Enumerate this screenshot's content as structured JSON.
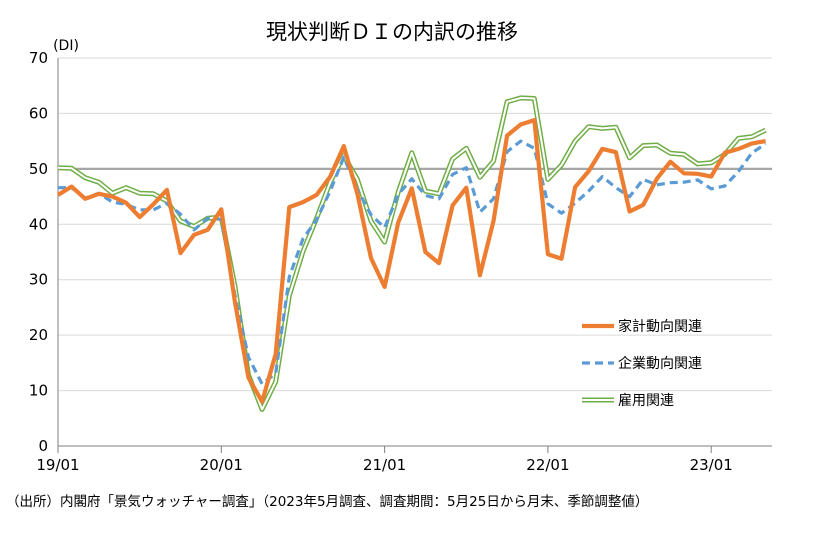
{
  "chart_data": {
    "type": "line",
    "title": "現状判断ＤＩの内訳の推移",
    "ylabel": "(DI)",
    "ylim": [
      0,
      70
    ],
    "yticks": [
      0,
      10,
      20,
      30,
      40,
      50,
      60,
      70
    ],
    "reference_line": 50,
    "grid": true,
    "legend_position": "right",
    "x_tick_labels": [
      "19/01",
      "20/01",
      "21/01",
      "22/01",
      "23/01"
    ],
    "x_start": "2019-01",
    "x_end": "2023-05",
    "source": "（出所）内閣府「景気ウォッチャー調査」（2023年5月調査、調査期間：5月25日から月末、季節調整値）",
    "series": [
      {
        "name": "家計動向関連",
        "color": "#ED7D31",
        "style": "solid",
        "values": [
          45.3,
          46.8,
          44.6,
          45.5,
          45.0,
          43.9,
          41.3,
          43.6,
          46.2,
          34.8,
          38.1,
          39.0,
          42.7,
          26.0,
          12.3,
          8.0,
          16.6,
          43.1,
          44.0,
          45.3,
          48.6,
          54.1,
          45.5,
          33.9,
          28.7,
          40.3,
          46.5,
          35.0,
          33.0,
          43.4,
          46.6,
          30.8,
          40.6,
          56.0,
          58.0,
          58.8,
          34.6,
          33.8,
          46.7,
          49.6,
          53.6,
          53.0,
          42.3,
          43.5,
          48.2,
          51.3,
          49.2,
          49.1,
          48.6,
          52.9,
          53.6,
          54.6,
          55.0
        ]
      },
      {
        "name": "企業動向関連",
        "color": "#5B9BD5",
        "style": "dashed",
        "values": [
          46.6,
          46.6,
          44.7,
          45.6,
          44.0,
          43.6,
          42.6,
          42.6,
          43.8,
          41.8,
          39.0,
          41.1,
          40.9,
          27.3,
          16.0,
          11.2,
          13.1,
          30.5,
          37.4,
          40.8,
          46.0,
          52.1,
          46.3,
          41.7,
          39.4,
          45.4,
          48.2,
          45.2,
          44.6,
          49.0,
          50.2,
          42.2,
          44.6,
          53.1,
          55.0,
          53.7,
          43.7,
          42.0,
          43.8,
          46.0,
          48.6,
          46.6,
          45.0,
          48.1,
          47.1,
          47.5,
          47.6,
          48.0,
          46.4,
          46.9,
          49.5,
          52.9,
          54.5
        ]
      },
      {
        "name": "雇用関連",
        "color": "#70AD47",
        "style": "double",
        "values": [
          50.2,
          50.1,
          48.4,
          47.6,
          45.6,
          46.6,
          45.6,
          45.5,
          44.2,
          40.6,
          39.6,
          41.1,
          41.3,
          28.9,
          12.8,
          6.6,
          11.6,
          27.1,
          35.1,
          41.1,
          47.6,
          52.4,
          48.1,
          40.6,
          36.8,
          45.8,
          52.9,
          46.0,
          45.5,
          51.8,
          53.7,
          48.5,
          51.4,
          62.1,
          62.8,
          62.7,
          48.1,
          50.7,
          55.0,
          57.6,
          57.3,
          57.5,
          52.0,
          54.2,
          54.3,
          52.8,
          52.6,
          50.9,
          51.1,
          52.6,
          55.5,
          55.8,
          57.0
        ]
      }
    ]
  }
}
